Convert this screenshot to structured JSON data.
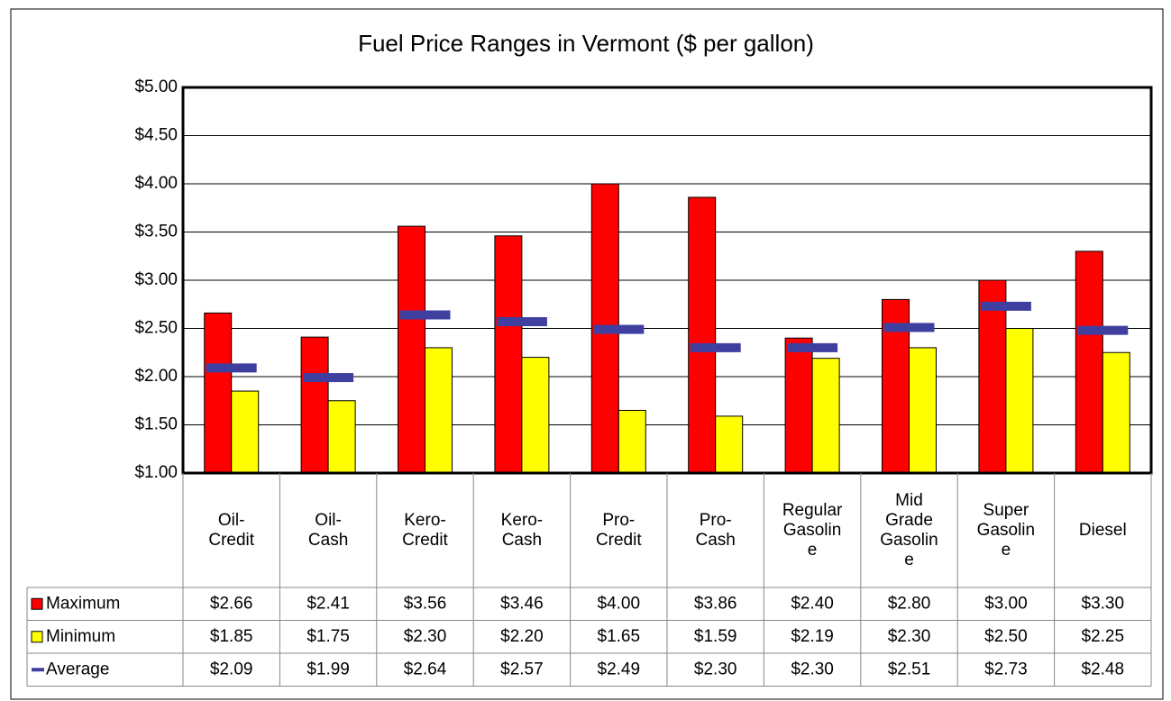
{
  "chart_data": {
    "type": "bar",
    "title": "Fuel Price Ranges in Vermont ($ per gallon)",
    "categories": [
      "Oil-Credit",
      "Oil-Cash",
      "Kero-Credit",
      "Kero-Cash",
      "Pro-Credit",
      "Pro-Cash",
      "Regular Gasoline",
      "Mid Grade Gasoline",
      "Super Gasoline",
      "Diesel"
    ],
    "series": [
      {
        "name": "Maximum",
        "color": "#ff0000",
        "marker": "bar",
        "values": [
          2.66,
          2.41,
          3.56,
          3.46,
          4.0,
          3.86,
          2.4,
          2.8,
          3.0,
          3.3
        ],
        "value_labels": [
          "$2.66",
          "$2.41",
          "$3.56",
          "$3.46",
          "$4.00",
          "$3.86",
          "$2.40",
          "$2.80",
          "$3.00",
          "$3.30"
        ]
      },
      {
        "name": "Minimum",
        "color": "#ffff00",
        "marker": "bar",
        "values": [
          1.85,
          1.75,
          2.3,
          2.2,
          1.65,
          1.59,
          2.19,
          2.3,
          2.5,
          2.25
        ],
        "value_labels": [
          "$1.85",
          "$1.75",
          "$2.30",
          "$2.20",
          "$1.65",
          "$1.59",
          "$2.19",
          "$2.30",
          "$2.50",
          "$2.25"
        ]
      },
      {
        "name": "Average",
        "color": "#3f3f9f",
        "marker": "dash",
        "values": [
          2.09,
          1.99,
          2.64,
          2.57,
          2.49,
          2.3,
          2.3,
          2.51,
          2.73,
          2.48
        ],
        "value_labels": [
          "$2.09",
          "$1.99",
          "$2.64",
          "$2.57",
          "$2.49",
          "$2.30",
          "$2.30",
          "$2.51",
          "$2.73",
          "$2.48"
        ]
      }
    ],
    "ylim": [
      1,
      5
    ],
    "yticks": [
      {
        "value": 1,
        "label": "$1.00"
      },
      {
        "value": 1.5,
        "label": "$1.50"
      },
      {
        "value": 2,
        "label": "$2.00"
      },
      {
        "value": 2.5,
        "label": "$2.50"
      },
      {
        "value": 3,
        "label": "$3.00"
      },
      {
        "value": 3.5,
        "label": "$3.50"
      },
      {
        "value": 4,
        "label": "$4.00"
      },
      {
        "value": 4.5,
        "label": "$4.50"
      },
      {
        "value": 5,
        "label": "$5.00"
      }
    ],
    "grid": true,
    "data_table": true
  }
}
